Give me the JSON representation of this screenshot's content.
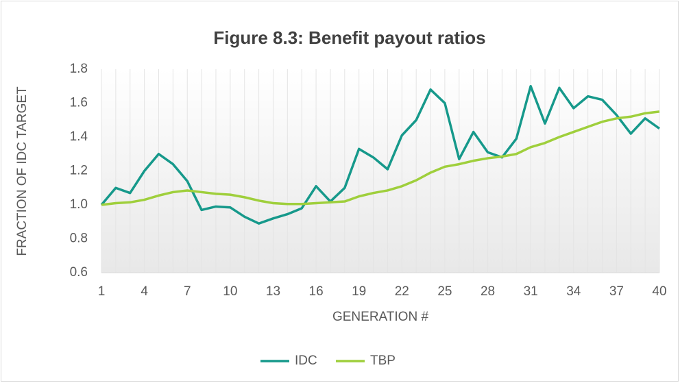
{
  "chart_data": {
    "type": "line",
    "title": "Figure 8.3: Benefit payout ratios",
    "xlabel": "GENERATION #",
    "ylabel": "FRACTION OF IDC TARGET",
    "x": [
      1,
      2,
      3,
      4,
      5,
      6,
      7,
      8,
      9,
      10,
      11,
      12,
      13,
      14,
      15,
      16,
      17,
      18,
      19,
      20,
      21,
      22,
      23,
      24,
      25,
      26,
      27,
      28,
      29,
      30,
      31,
      32,
      33,
      34,
      35,
      36,
      37,
      38,
      39,
      40
    ],
    "xlim": [
      1,
      40
    ],
    "xticks": [
      1,
      4,
      7,
      10,
      13,
      16,
      19,
      22,
      25,
      28,
      31,
      34,
      37,
      40
    ],
    "ylim": [
      0.6,
      1.8
    ],
    "yticks": [
      0.6,
      0.8,
      {
        "value": 1.0,
        "label": "1.0"
      },
      1.2,
      1.4,
      1.6,
      1.8
    ],
    "legend": "bottom",
    "series": [
      {
        "name": "IDC",
        "color": "#16998b",
        "values": [
          1.0,
          1.1,
          1.07,
          1.2,
          1.3,
          1.24,
          1.14,
          0.97,
          0.99,
          0.985,
          0.93,
          0.89,
          0.92,
          0.945,
          0.98,
          1.11,
          1.02,
          1.1,
          1.33,
          1.28,
          1.21,
          1.41,
          1.5,
          1.68,
          1.6,
          1.27,
          1.43,
          1.31,
          1.28,
          1.39,
          1.7,
          1.48,
          1.69,
          1.57,
          1.64,
          1.62,
          1.53,
          1.42,
          1.51,
          1.45
        ]
      },
      {
        "name": "TBP",
        "color": "#9fcf3c",
        "values": [
          1.0,
          1.01,
          1.015,
          1.03,
          1.055,
          1.075,
          1.085,
          1.075,
          1.065,
          1.06,
          1.045,
          1.025,
          1.01,
          1.005,
          1.005,
          1.01,
          1.015,
          1.02,
          1.05,
          1.07,
          1.085,
          1.11,
          1.145,
          1.19,
          1.225,
          1.24,
          1.26,
          1.275,
          1.285,
          1.3,
          1.34,
          1.365,
          1.4,
          1.43,
          1.46,
          1.49,
          1.51,
          1.52,
          1.54,
          1.55
        ]
      }
    ]
  }
}
